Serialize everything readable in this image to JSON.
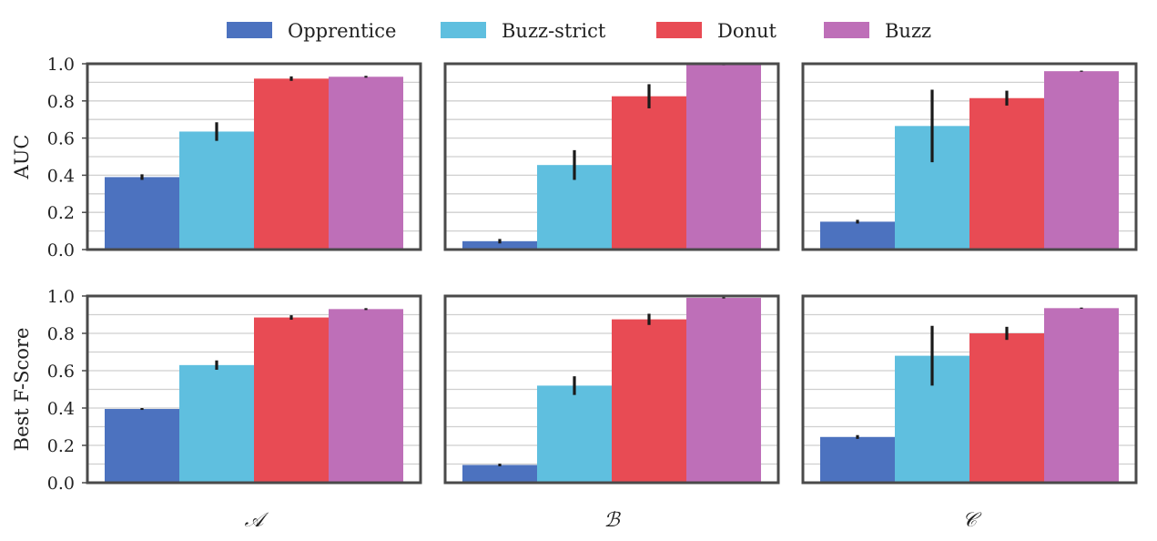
{
  "chart_data": {
    "type": "bar",
    "legend_position": "top-center",
    "series": [
      {
        "name": "Opprentice",
        "color": "#4c72bf"
      },
      {
        "name": "Buzz-strict",
        "color": "#5fbfdf"
      },
      {
        "name": "Donut",
        "color": "#e84b54"
      },
      {
        "name": "Buzz",
        "color": "#be6fb8"
      }
    ],
    "columns": [
      "𝒜",
      "ℬ",
      "𝒞"
    ],
    "rows": [
      {
        "ylabel": "AUC",
        "ylim": [
          0,
          1.0
        ],
        "yticks": [
          "0.0",
          "0.2",
          "0.4",
          "0.6",
          "0.8",
          "1.0"
        ],
        "panels": [
          {
            "values": [
              0.39,
              0.635,
              0.92,
              0.93
            ],
            "errors": [
              0.015,
              0.05,
              0.012,
              0.005
            ]
          },
          {
            "values": [
              0.045,
              0.455,
              0.825,
              0.995
            ],
            "errors": [
              0.012,
              0.08,
              0.065,
              0.003
            ]
          },
          {
            "values": [
              0.15,
              0.665,
              0.815,
              0.96
            ],
            "errors": [
              0.01,
              0.195,
              0.04,
              0.003
            ]
          }
        ]
      },
      {
        "ylabel": "Best F-Score",
        "ylim": [
          0,
          1.0
        ],
        "yticks": [
          "0.0",
          "0.2",
          "0.4",
          "0.6",
          "0.8",
          "1.0"
        ],
        "panels": [
          {
            "values": [
              0.395,
              0.63,
              0.885,
              0.93
            ],
            "errors": [
              0.005,
              0.025,
              0.012,
              0.005
            ]
          },
          {
            "values": [
              0.095,
              0.52,
              0.875,
              0.99
            ],
            "errors": [
              0.007,
              0.05,
              0.03,
              0.003
            ]
          },
          {
            "values": [
              0.245,
              0.68,
              0.8,
              0.935
            ],
            "errors": [
              0.01,
              0.16,
              0.035,
              0.003
            ]
          }
        ]
      }
    ]
  }
}
